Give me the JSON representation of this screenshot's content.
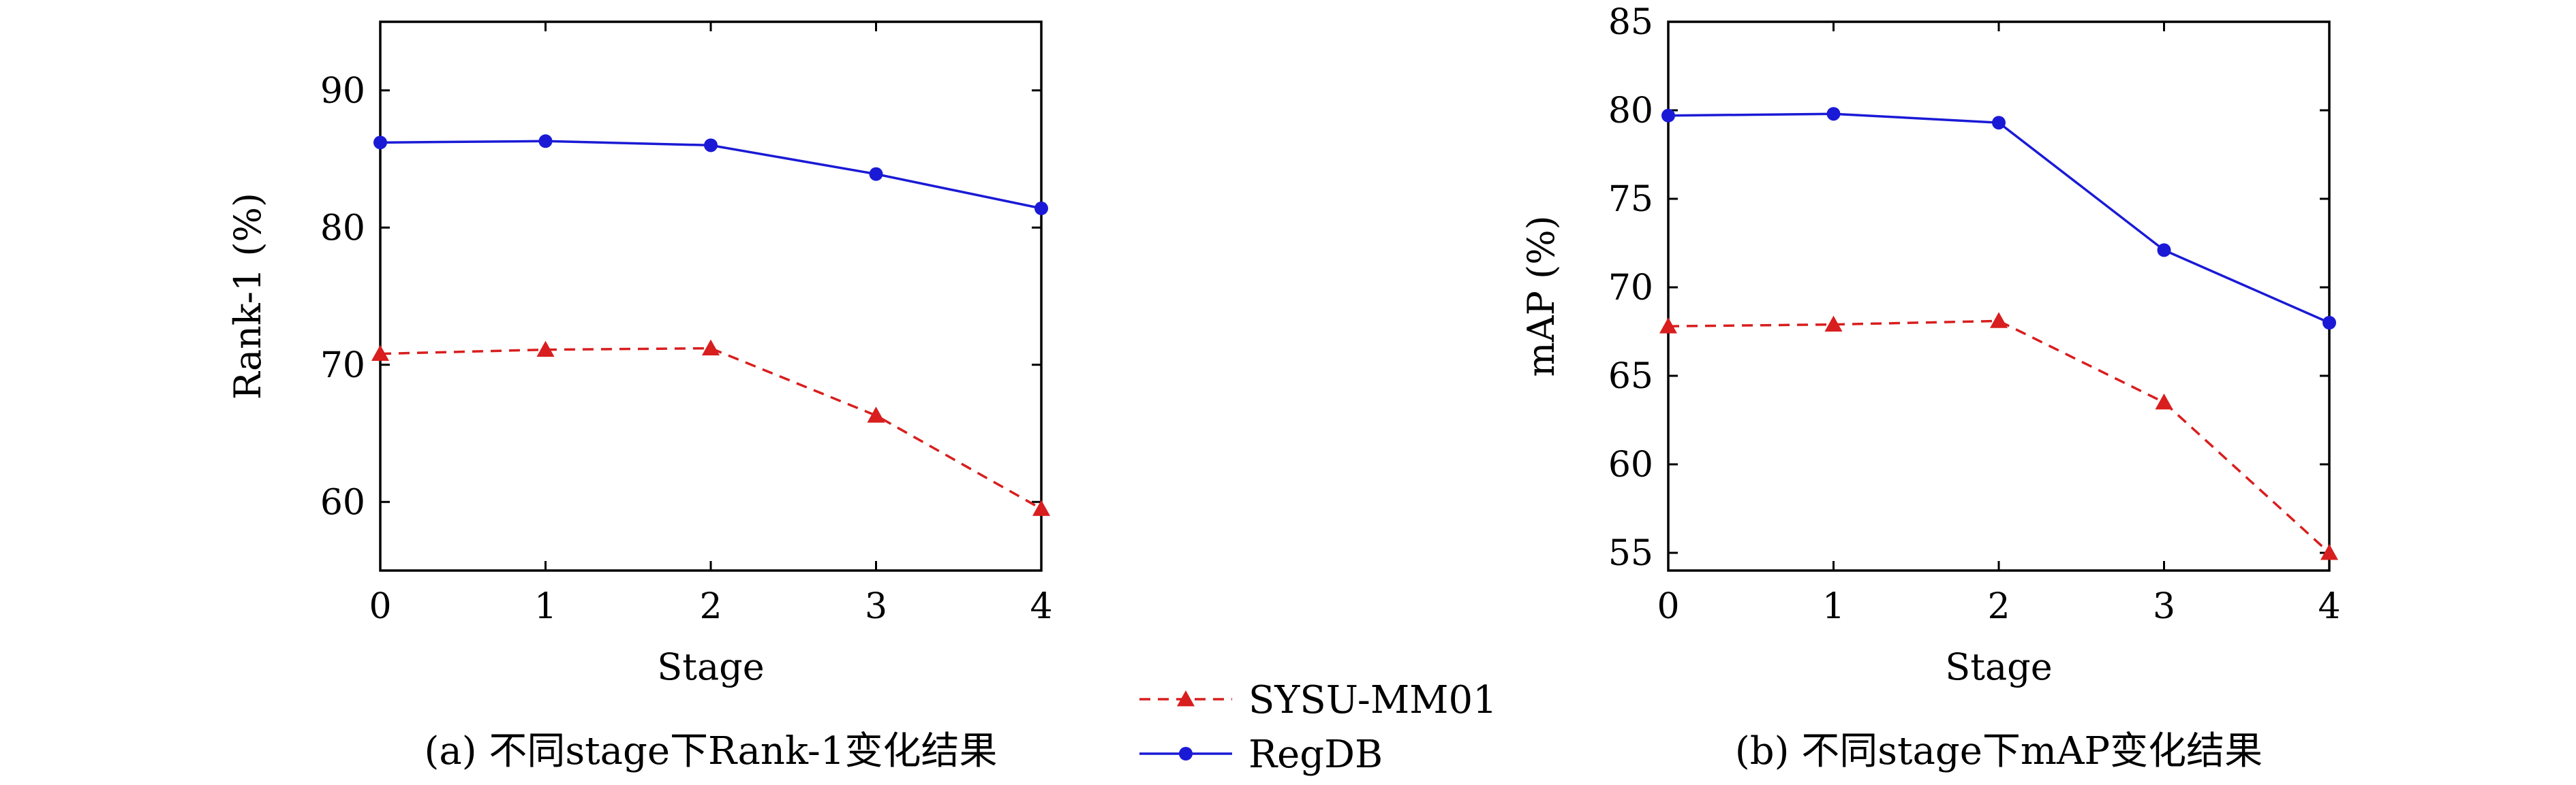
{
  "chart_data": [
    {
      "type": "line",
      "caption": "(a) 不同stage下Rank-1变化结果",
      "xlabel": "Stage",
      "ylabel": "Rank-1 (%)",
      "x": [
        0,
        1,
        2,
        3,
        4
      ],
      "xlim": [
        0,
        4
      ],
      "ylim": [
        55,
        95
      ],
      "yticks": [
        60,
        70,
        80,
        90
      ],
      "grid": false,
      "series": [
        {
          "name": "SYSU-MM01",
          "color": "#d81e1e",
          "marker": "triangle",
          "style": "dashed",
          "values": [
            70.8,
            71.1,
            71.2,
            66.3,
            59.5
          ]
        },
        {
          "name": "RegDB",
          "color": "#1a1ad6",
          "marker": "circle",
          "style": "solid",
          "values": [
            86.2,
            86.3,
            86.0,
            83.9,
            81.4
          ]
        }
      ]
    },
    {
      "type": "line",
      "caption": "(b) 不同stage下mAP变化结果",
      "xlabel": "Stage",
      "ylabel": "mAP (%)",
      "x": [
        0,
        1,
        2,
        3,
        4
      ],
      "xlim": [
        0,
        4
      ],
      "ylim": [
        54,
        85
      ],
      "yticks": [
        55,
        60,
        65,
        70,
        75,
        80,
        85
      ],
      "grid": false,
      "series": [
        {
          "name": "SYSU-MM01",
          "color": "#d81e1e",
          "marker": "triangle",
          "style": "dashed",
          "values": [
            67.8,
            67.9,
            68.1,
            63.5,
            55.0
          ]
        },
        {
          "name": "RegDB",
          "color": "#1a1ad6",
          "marker": "circle",
          "style": "solid",
          "values": [
            79.7,
            79.8,
            79.3,
            72.1,
            68.0
          ]
        }
      ]
    }
  ],
  "legend": {
    "placement": "bottom-center",
    "entries": [
      {
        "label": "SYSU-MM01",
        "color": "#d81e1e",
        "marker": "triangle",
        "style": "dashed"
      },
      {
        "label": "RegDB",
        "color": "#1a1ad6",
        "marker": "circle",
        "style": "solid"
      }
    ]
  }
}
